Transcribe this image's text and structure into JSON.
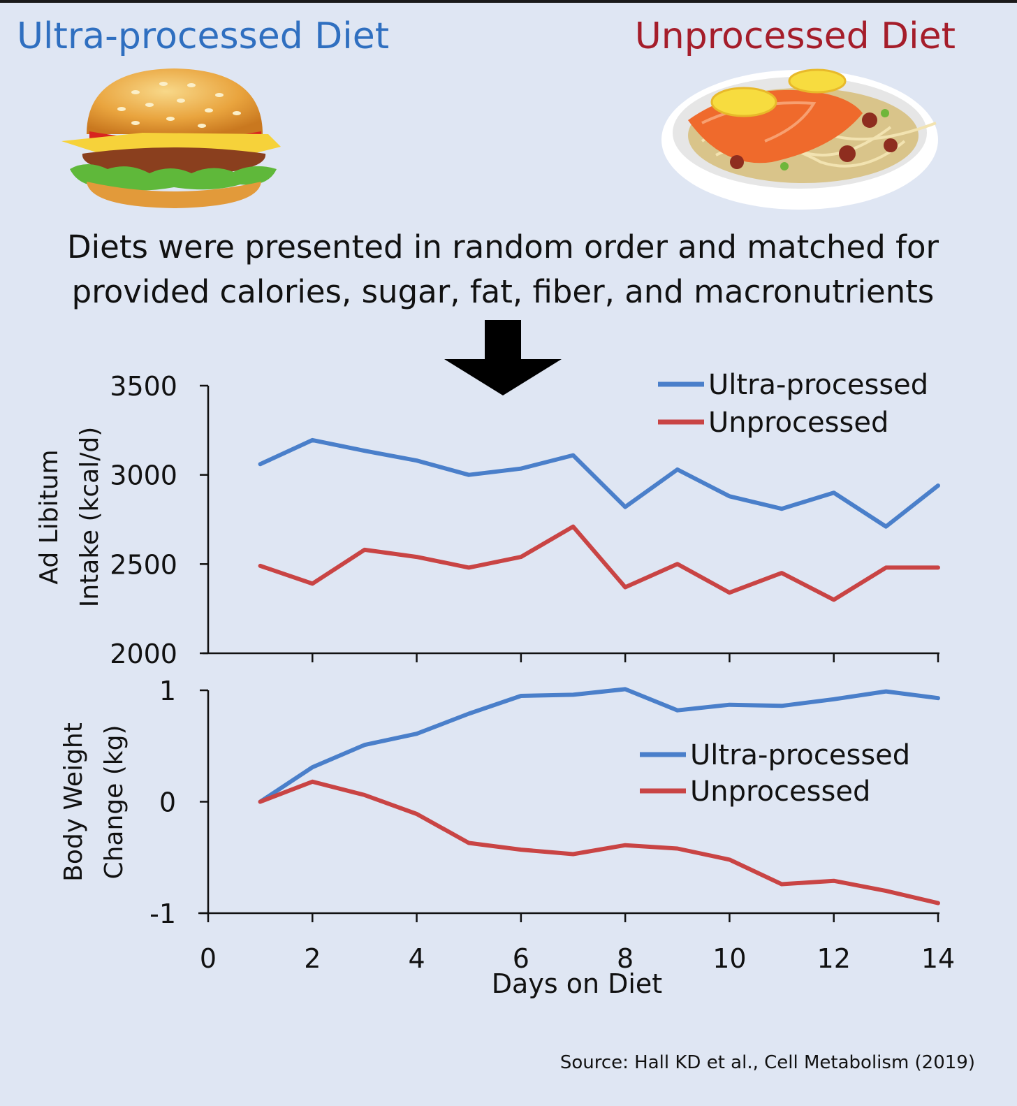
{
  "header": {
    "left_title": "Ultra-processed Diet",
    "right_title": "Unprocessed Diet"
  },
  "caption": {
    "line1": "Diets were presented in random order and matched for",
    "line2": "provided calories, sugar, fat, fiber, and macronutrients"
  },
  "source": "Source: Hall KD et al., Cell Metabolism (2019)",
  "colors": {
    "ultra": "#4a7fca",
    "unprocessed": "#c94444",
    "axis": "#111111"
  },
  "chart_data": [
    {
      "type": "line",
      "ylabel": [
        "Ad Libitum",
        "Intake (kcal/d)"
      ],
      "xlabel": "",
      "xlim": [
        0,
        14
      ],
      "ylim": [
        2000,
        3500
      ],
      "yticks": [
        2000,
        2500,
        3000,
        3500
      ],
      "ytick_labels": [
        "2000",
        "2500",
        "3000",
        "3500"
      ],
      "xticks": [
        2,
        4,
        6,
        8,
        10,
        12,
        14
      ],
      "legend_position": "top-right",
      "x": [
        1,
        2,
        3,
        4,
        5,
        6,
        7,
        8,
        9,
        10,
        11,
        12,
        13,
        14
      ],
      "series": [
        {
          "name": "Ultra-processed",
          "values": [
            3060,
            3195,
            3135,
            3080,
            3000,
            3035,
            3110,
            2820,
            3030,
            2880,
            2810,
            2900,
            2710,
            2940
          ]
        },
        {
          "name": "Unprocessed",
          "values": [
            2490,
            2390,
            2580,
            2540,
            2480,
            2540,
            2710,
            2370,
            2500,
            2340,
            2450,
            2300,
            2480,
            2480
          ]
        }
      ]
    },
    {
      "type": "line",
      "ylabel": [
        "Body Weight",
        "Change (kg)"
      ],
      "xlabel": "Days on Diet",
      "xlim": [
        0,
        14
      ],
      "ylim": [
        -1,
        1
      ],
      "yticks": [
        -1,
        0,
        1
      ],
      "ytick_labels": [
        "-1",
        "0",
        "1"
      ],
      "xticks": [
        0,
        2,
        4,
        6,
        8,
        10,
        12,
        14
      ],
      "xtick_labels": [
        "0",
        "2",
        "4",
        "6",
        "8",
        "10",
        "12",
        "14"
      ],
      "legend_position": "center-right",
      "x": [
        1,
        2,
        3,
        4,
        5,
        6,
        7,
        8,
        9,
        10,
        11,
        12,
        13,
        14
      ],
      "series": [
        {
          "name": "Ultra-processed",
          "values": [
            0.0,
            0.31,
            0.51,
            0.61,
            0.79,
            0.95,
            0.96,
            1.01,
            0.82,
            0.87,
            0.86,
            0.92,
            0.99,
            0.93
          ]
        },
        {
          "name": "Unprocessed",
          "values": [
            0.0,
            0.18,
            0.06,
            -0.11,
            -0.37,
            -0.43,
            -0.47,
            -0.39,
            -0.42,
            -0.52,
            -0.74,
            -0.71,
            -0.8,
            -0.91
          ]
        }
      ]
    }
  ]
}
